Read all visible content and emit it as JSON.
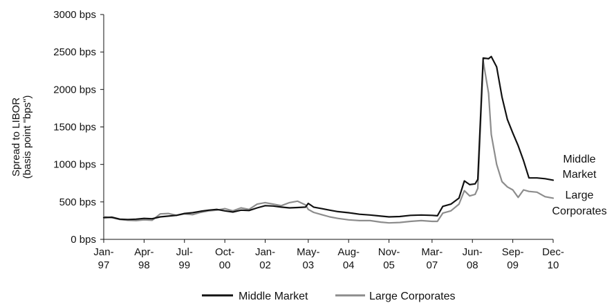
{
  "chart_data": {
    "type": "line",
    "ylabel_line1": "Spread to LIBOR",
    "ylabel_line2": "(basis point \"bps\")",
    "ylim": [
      0,
      3000
    ],
    "y_ticks": [
      0,
      500,
      1000,
      1500,
      2000,
      2500,
      3000
    ],
    "y_tick_labels": [
      "0 bps",
      "500 bps",
      "1000 bps",
      "1500 bps",
      "2000 bps",
      "2500 bps",
      "3000 bps"
    ],
    "x_range": [
      "1997-01",
      "2010-12"
    ],
    "x_ticks": [
      "1997-01",
      "1998-04",
      "1999-07",
      "2000-10",
      "2002-01",
      "2003-05",
      "2004-08",
      "2005-11",
      "2007-03",
      "2008-06",
      "2009-09",
      "2010-12"
    ],
    "x_tick_labels": [
      [
        "Jan-",
        "97"
      ],
      [
        "Apr-",
        "98"
      ],
      [
        "Jul-",
        "99"
      ],
      [
        "Oct-",
        "00"
      ],
      [
        "Jan-",
        "02"
      ],
      [
        "May-",
        "03"
      ],
      [
        "Aug-",
        "04"
      ],
      [
        "Nov-",
        "05"
      ],
      [
        "Mar-",
        "07"
      ],
      [
        "Jun-",
        "08"
      ],
      [
        "Sep-",
        "09"
      ],
      [
        "Dec-",
        "10"
      ]
    ],
    "grid": false,
    "legend_position": "bottom-center",
    "series": [
      {
        "name": "Middle Market",
        "color": "#111111",
        "end_label": [
          "Middle",
          "Market"
        ],
        "points": [
          [
            "1997-01",
            290
          ],
          [
            "1997-04",
            295
          ],
          [
            "1997-07",
            270
          ],
          [
            "1997-10",
            265
          ],
          [
            "1998-01",
            270
          ],
          [
            "1998-04",
            280
          ],
          [
            "1998-07",
            275
          ],
          [
            "1998-10",
            300
          ],
          [
            "1999-01",
            310
          ],
          [
            "1999-04",
            320
          ],
          [
            "1999-07",
            345
          ],
          [
            "1999-10",
            355
          ],
          [
            "2000-01",
            375
          ],
          [
            "2000-04",
            390
          ],
          [
            "2000-07",
            400
          ],
          [
            "2000-10",
            380
          ],
          [
            "2001-01",
            365
          ],
          [
            "2001-04",
            390
          ],
          [
            "2001-07",
            385
          ],
          [
            "2001-10",
            420
          ],
          [
            "2002-01",
            450
          ],
          [
            "2002-04",
            445
          ],
          [
            "2002-07",
            430
          ],
          [
            "2002-10",
            420
          ],
          [
            "2003-01",
            425
          ],
          [
            "2003-04",
            430
          ],
          [
            "2003-05",
            480
          ],
          [
            "2003-07",
            430
          ],
          [
            "2003-10",
            410
          ],
          [
            "2004-01",
            390
          ],
          [
            "2004-04",
            370
          ],
          [
            "2004-08",
            355
          ],
          [
            "2004-12",
            335
          ],
          [
            "2005-04",
            325
          ],
          [
            "2005-08",
            310
          ],
          [
            "2005-11",
            300
          ],
          [
            "2006-03",
            305
          ],
          [
            "2006-07",
            320
          ],
          [
            "2006-11",
            325
          ],
          [
            "2007-03",
            320
          ],
          [
            "2007-05",
            315
          ],
          [
            "2007-07",
            440
          ],
          [
            "2007-10",
            470
          ],
          [
            "2008-01",
            550
          ],
          [
            "2008-03",
            780
          ],
          [
            "2008-05",
            730
          ],
          [
            "2008-07",
            740
          ],
          [
            "2008-08",
            800
          ],
          [
            "2008-10",
            2420
          ],
          [
            "2008-12",
            2410
          ],
          [
            "2009-01",
            2440
          ],
          [
            "2009-03",
            2300
          ],
          [
            "2009-05",
            1900
          ],
          [
            "2009-07",
            1600
          ],
          [
            "2009-09",
            1420
          ],
          [
            "2009-11",
            1250
          ],
          [
            "2010-01",
            1050
          ],
          [
            "2010-03",
            820
          ],
          [
            "2010-06",
            820
          ],
          [
            "2010-09",
            810
          ],
          [
            "2010-12",
            790
          ]
        ]
      },
      {
        "name": "Large Corporates",
        "color": "#8c8c8c",
        "end_label": [
          "Large",
          "Corporates"
        ],
        "points": [
          [
            "1997-01",
            300
          ],
          [
            "1997-04",
            290
          ],
          [
            "1997-07",
            265
          ],
          [
            "1997-10",
            255
          ],
          [
            "1998-01",
            250
          ],
          [
            "1998-04",
            260
          ],
          [
            "1998-07",
            255
          ],
          [
            "1998-10",
            340
          ],
          [
            "1999-01",
            345
          ],
          [
            "1999-04",
            320
          ],
          [
            "1999-07",
            340
          ],
          [
            "1999-10",
            330
          ],
          [
            "2000-01",
            360
          ],
          [
            "2000-04",
            380
          ],
          [
            "2000-07",
            390
          ],
          [
            "2000-10",
            410
          ],
          [
            "2001-01",
            380
          ],
          [
            "2001-04",
            420
          ],
          [
            "2001-07",
            400
          ],
          [
            "2001-10",
            470
          ],
          [
            "2002-01",
            490
          ],
          [
            "2002-04",
            470
          ],
          [
            "2002-07",
            450
          ],
          [
            "2002-10",
            490
          ],
          [
            "2003-01",
            510
          ],
          [
            "2003-04",
            460
          ],
          [
            "2003-05",
            400
          ],
          [
            "2003-07",
            360
          ],
          [
            "2003-10",
            330
          ],
          [
            "2004-01",
            300
          ],
          [
            "2004-04",
            280
          ],
          [
            "2004-08",
            260
          ],
          [
            "2004-12",
            250
          ],
          [
            "2005-04",
            250
          ],
          [
            "2005-08",
            230
          ],
          [
            "2005-11",
            220
          ],
          [
            "2006-03",
            225
          ],
          [
            "2006-07",
            240
          ],
          [
            "2006-11",
            250
          ],
          [
            "2007-03",
            240
          ],
          [
            "2007-05",
            240
          ],
          [
            "2007-07",
            350
          ],
          [
            "2007-10",
            380
          ],
          [
            "2008-01",
            470
          ],
          [
            "2008-03",
            650
          ],
          [
            "2008-05",
            580
          ],
          [
            "2008-07",
            600
          ],
          [
            "2008-08",
            680
          ],
          [
            "2008-10",
            2380
          ],
          [
            "2008-12",
            1950
          ],
          [
            "2009-01",
            1400
          ],
          [
            "2009-03",
            1000
          ],
          [
            "2009-05",
            770
          ],
          [
            "2009-07",
            700
          ],
          [
            "2009-09",
            660
          ],
          [
            "2009-11",
            560
          ],
          [
            "2010-01",
            660
          ],
          [
            "2010-03",
            640
          ],
          [
            "2010-06",
            630
          ],
          [
            "2010-09",
            570
          ],
          [
            "2010-12",
            550
          ]
        ]
      }
    ]
  }
}
